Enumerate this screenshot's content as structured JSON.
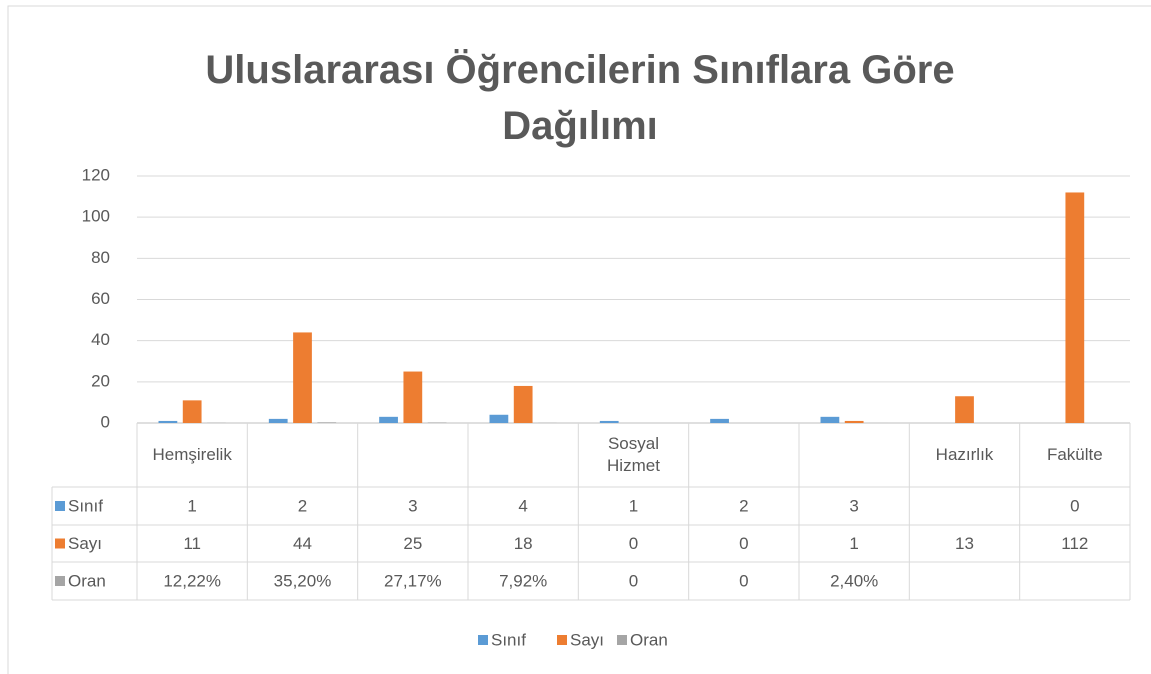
{
  "chart_data": {
    "type": "bar",
    "title": "Uluslararası Öğrencilerin Sınıflara Göre Dağılımı",
    "categories": [
      "Hemşirelik",
      null,
      null,
      null,
      "Sosyal Hizmet",
      null,
      null,
      "Hazırlık",
      "Fakülte"
    ],
    "series": [
      {
        "name": "Sınıf",
        "color": "#5b9bd5",
        "values": [
          1,
          2,
          3,
          4,
          1,
          2,
          3,
          null,
          0
        ]
      },
      {
        "name": "Sayı",
        "color": "#ed7d31",
        "values": [
          11,
          44,
          25,
          18,
          0,
          0,
          1,
          13,
          112
        ]
      },
      {
        "name": "Oran",
        "color": "#a5a5a5",
        "values": [
          0.1222,
          0.352,
          0.2717,
          0.0792,
          0,
          0,
          0.024,
          null,
          null
        ],
        "value_labels": [
          "12,22%",
          "35,20%",
          "27,17%",
          "7,92%",
          "0",
          "0",
          "2,40%",
          null,
          null
        ]
      }
    ],
    "ylim": [
      0,
      120
    ],
    "yticks": [
      0,
      20,
      40,
      60,
      80,
      100,
      120
    ],
    "grid": true,
    "legend": "bottom"
  }
}
